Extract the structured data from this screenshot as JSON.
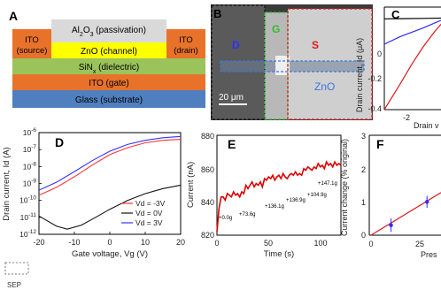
{
  "panels": {
    "A": {
      "label": "A",
      "layers": {
        "passivation": {
          "pre": "Al",
          "sub1": "2",
          "mid": "O",
          "sub2": "3",
          "post": " (passivation)"
        },
        "ito_source": {
          "line1": "ITO",
          "line2": "(source)"
        },
        "channel": "ZnO (channel)",
        "ito_drain": {
          "line1": "ITO",
          "line2": "(drain)"
        },
        "dielectric": {
          "pre": "SiN",
          "sub": "x",
          "post": " (dielectric)"
        },
        "gate": "ITO (gate)",
        "substrate": "Glass (substrate)"
      },
      "colors": {
        "ito": "#e8722a",
        "zno": "#ffff00",
        "al2o3": "#d9d9d9",
        "sin": "#9bc35b",
        "glass": "#4f7fbf"
      }
    },
    "B": {
      "label": "B",
      "labels": {
        "D": "D",
        "G": "G",
        "S": "S",
        "ZnO": "ZnO"
      },
      "scale_bar": "20 μm",
      "colors": {
        "D": "#2f2fff",
        "G": "#2ebc2e",
        "S": "#e01818",
        "ZnO": "#3c78d8"
      }
    },
    "C": {
      "label": "C",
      "ylabel": "Drain current, Id (μA)",
      "xlabel": "Drain v",
      "yticks": [
        "0",
        "-0.2",
        "-0.4"
      ],
      "xticks": [
        "-2"
      ]
    },
    "D": {
      "label": "D",
      "ylabel": "Drain current, Id (A)",
      "xlabel": "Gate voltage, Vg (V)",
      "ytick_exponents": [
        "-6",
        "-7",
        "-8",
        "-9",
        "-10",
        "-11",
        "-12"
      ],
      "xticks": [
        "-20",
        "-10",
        "0",
        "10",
        "20"
      ],
      "legend": [
        "Vd = -3V",
        "Vd = 0V",
        "Vd = 3V"
      ]
    },
    "E": {
      "label": "E",
      "ylabel": "Current (nA)",
      "xlabel": "Time (s)",
      "yticks": [
        "880",
        "860",
        "840",
        "820"
      ],
      "xticks": [
        "0",
        "50",
        "100"
      ],
      "annotations": [
        "+0.0g",
        "+73.6g",
        "+136.1g",
        "+136.9g",
        "+104.9g",
        "+147.1g"
      ]
    },
    "F": {
      "label": "F",
      "ylabel": "Current change (% original)",
      "xlabel": "Pres",
      "yticks": [
        "3",
        "2",
        "1",
        "0"
      ],
      "xticks": [
        "0",
        "25"
      ]
    }
  },
  "chart_data": [
    {
      "type": "line",
      "panel": "C",
      "title": "",
      "xlabel": "Drain v",
      "ylabel": "Drain current, Id (μA)",
      "xlim": [
        -2.7,
        0.6
      ],
      "ylim": [
        -0.42,
        0.05
      ],
      "series": [
        {
          "color": "#000000",
          "x": [
            -2.7,
            -2.0,
            -1.0,
            0,
            0.6
          ],
          "y": [
            -0.004,
            -0.003,
            -0.002,
            0,
            0.001
          ]
        },
        {
          "color": "#2b2bff",
          "x": [
            -2.7,
            -2.0,
            -1.0,
            -0.5,
            0,
            0.6
          ],
          "y": [
            -0.12,
            -0.085,
            -0.045,
            -0.022,
            0,
            0.02
          ]
        },
        {
          "color": "#e01818",
          "x": [
            -2.7,
            -2.0,
            -1.5,
            -1.0,
            -0.5,
            0,
            0.6
          ],
          "y": [
            -0.42,
            -0.3,
            -0.21,
            -0.13,
            -0.06,
            0,
            0.05
          ]
        }
      ]
    },
    {
      "type": "line",
      "panel": "D",
      "title": "",
      "xlabel": "Gate voltage, Vg (V)",
      "ylabel": "Drain current, Id (A)",
      "yscale": "log",
      "xlim": [
        -20,
        20
      ],
      "ylim": [
        1e-12,
        1e-06
      ],
      "legend_position": "bottom-right",
      "series": [
        {
          "name": "Vd = -3V",
          "color": "#ff3333",
          "x": [
            -20,
            -15,
            -10,
            -5,
            0,
            5,
            10,
            15,
            20
          ],
          "y": [
            2e-10,
            6e-10,
            2.5e-09,
            1.2e-08,
            5e-08,
            1.3e-07,
            2.5e-07,
            3.5e-07,
            4e-07
          ]
        },
        {
          "name": "Vd = 0V",
          "color": "#111111",
          "x": [
            -20,
            -15,
            -12,
            -8,
            -4,
            0,
            5,
            10,
            15,
            20
          ],
          "y": [
            1.2e-11,
            3e-12,
            2e-12,
            3.5e-12,
            1e-11,
            3e-11,
            1e-10,
            2.5e-10,
            5e-10,
            8e-10
          ]
        },
        {
          "name": "Vd = 3V",
          "color": "#3333ff",
          "x": [
            -20,
            -15,
            -10,
            -5,
            0,
            5,
            10,
            15,
            20
          ],
          "y": [
            4e-10,
            1.2e-09,
            5e-09,
            2.2e-08,
            8e-08,
            2e-07,
            3.5e-07,
            5e-07,
            6e-07
          ]
        }
      ]
    },
    {
      "type": "line",
      "panel": "E",
      "title": "",
      "xlabel": "Time (s)",
      "ylabel": "Current (nA)",
      "xlim": [
        0,
        120
      ],
      "ylim": [
        820,
        880
      ],
      "series": [
        {
          "color": "#dd0000",
          "x": [
            0,
            2,
            4,
            6,
            8,
            10,
            12,
            14,
            16,
            18,
            20,
            22,
            24,
            26,
            28,
            30,
            32,
            34,
            36,
            38,
            40,
            42,
            44,
            46,
            48,
            50,
            52,
            54,
            56,
            58,
            60,
            62,
            64,
            66,
            68,
            70,
            72,
            74,
            76,
            78,
            80,
            82,
            84,
            86,
            88,
            90,
            92,
            94,
            96,
            98,
            100,
            102,
            104,
            106,
            108,
            110,
            112,
            114,
            116,
            118,
            120
          ],
          "y": [
            822,
            836,
            843,
            843,
            841,
            845,
            844,
            843,
            846,
            844,
            845,
            843,
            846,
            845,
            850,
            848,
            850,
            852,
            849,
            851,
            850,
            852,
            849,
            854,
            853,
            855,
            854,
            856,
            853,
            855,
            856,
            854,
            857,
            855,
            854,
            856,
            857,
            856,
            858,
            856,
            857,
            856,
            860,
            859,
            861,
            860,
            859,
            861,
            860,
            863,
            861,
            862,
            860,
            864,
            862,
            863,
            861,
            864,
            862,
            863,
            862
          ]
        }
      ]
    },
    {
      "type": "scatter",
      "panel": "F",
      "title": "",
      "xlabel": "Pres",
      "ylabel": "Current change (% original)",
      "xlim": [
        0,
        35
      ],
      "ylim": [
        0,
        3
      ],
      "series": [
        {
          "color": "#2b2bff",
          "x": [
            10,
            28
          ],
          "y": [
            0.3,
            1.0
          ],
          "err": [
            0.2,
            0.18
          ]
        }
      ],
      "fit": {
        "color": "#e01818",
        "x": [
          0,
          35
        ],
        "y": [
          0.0,
          1.28
        ]
      }
    }
  ]
}
